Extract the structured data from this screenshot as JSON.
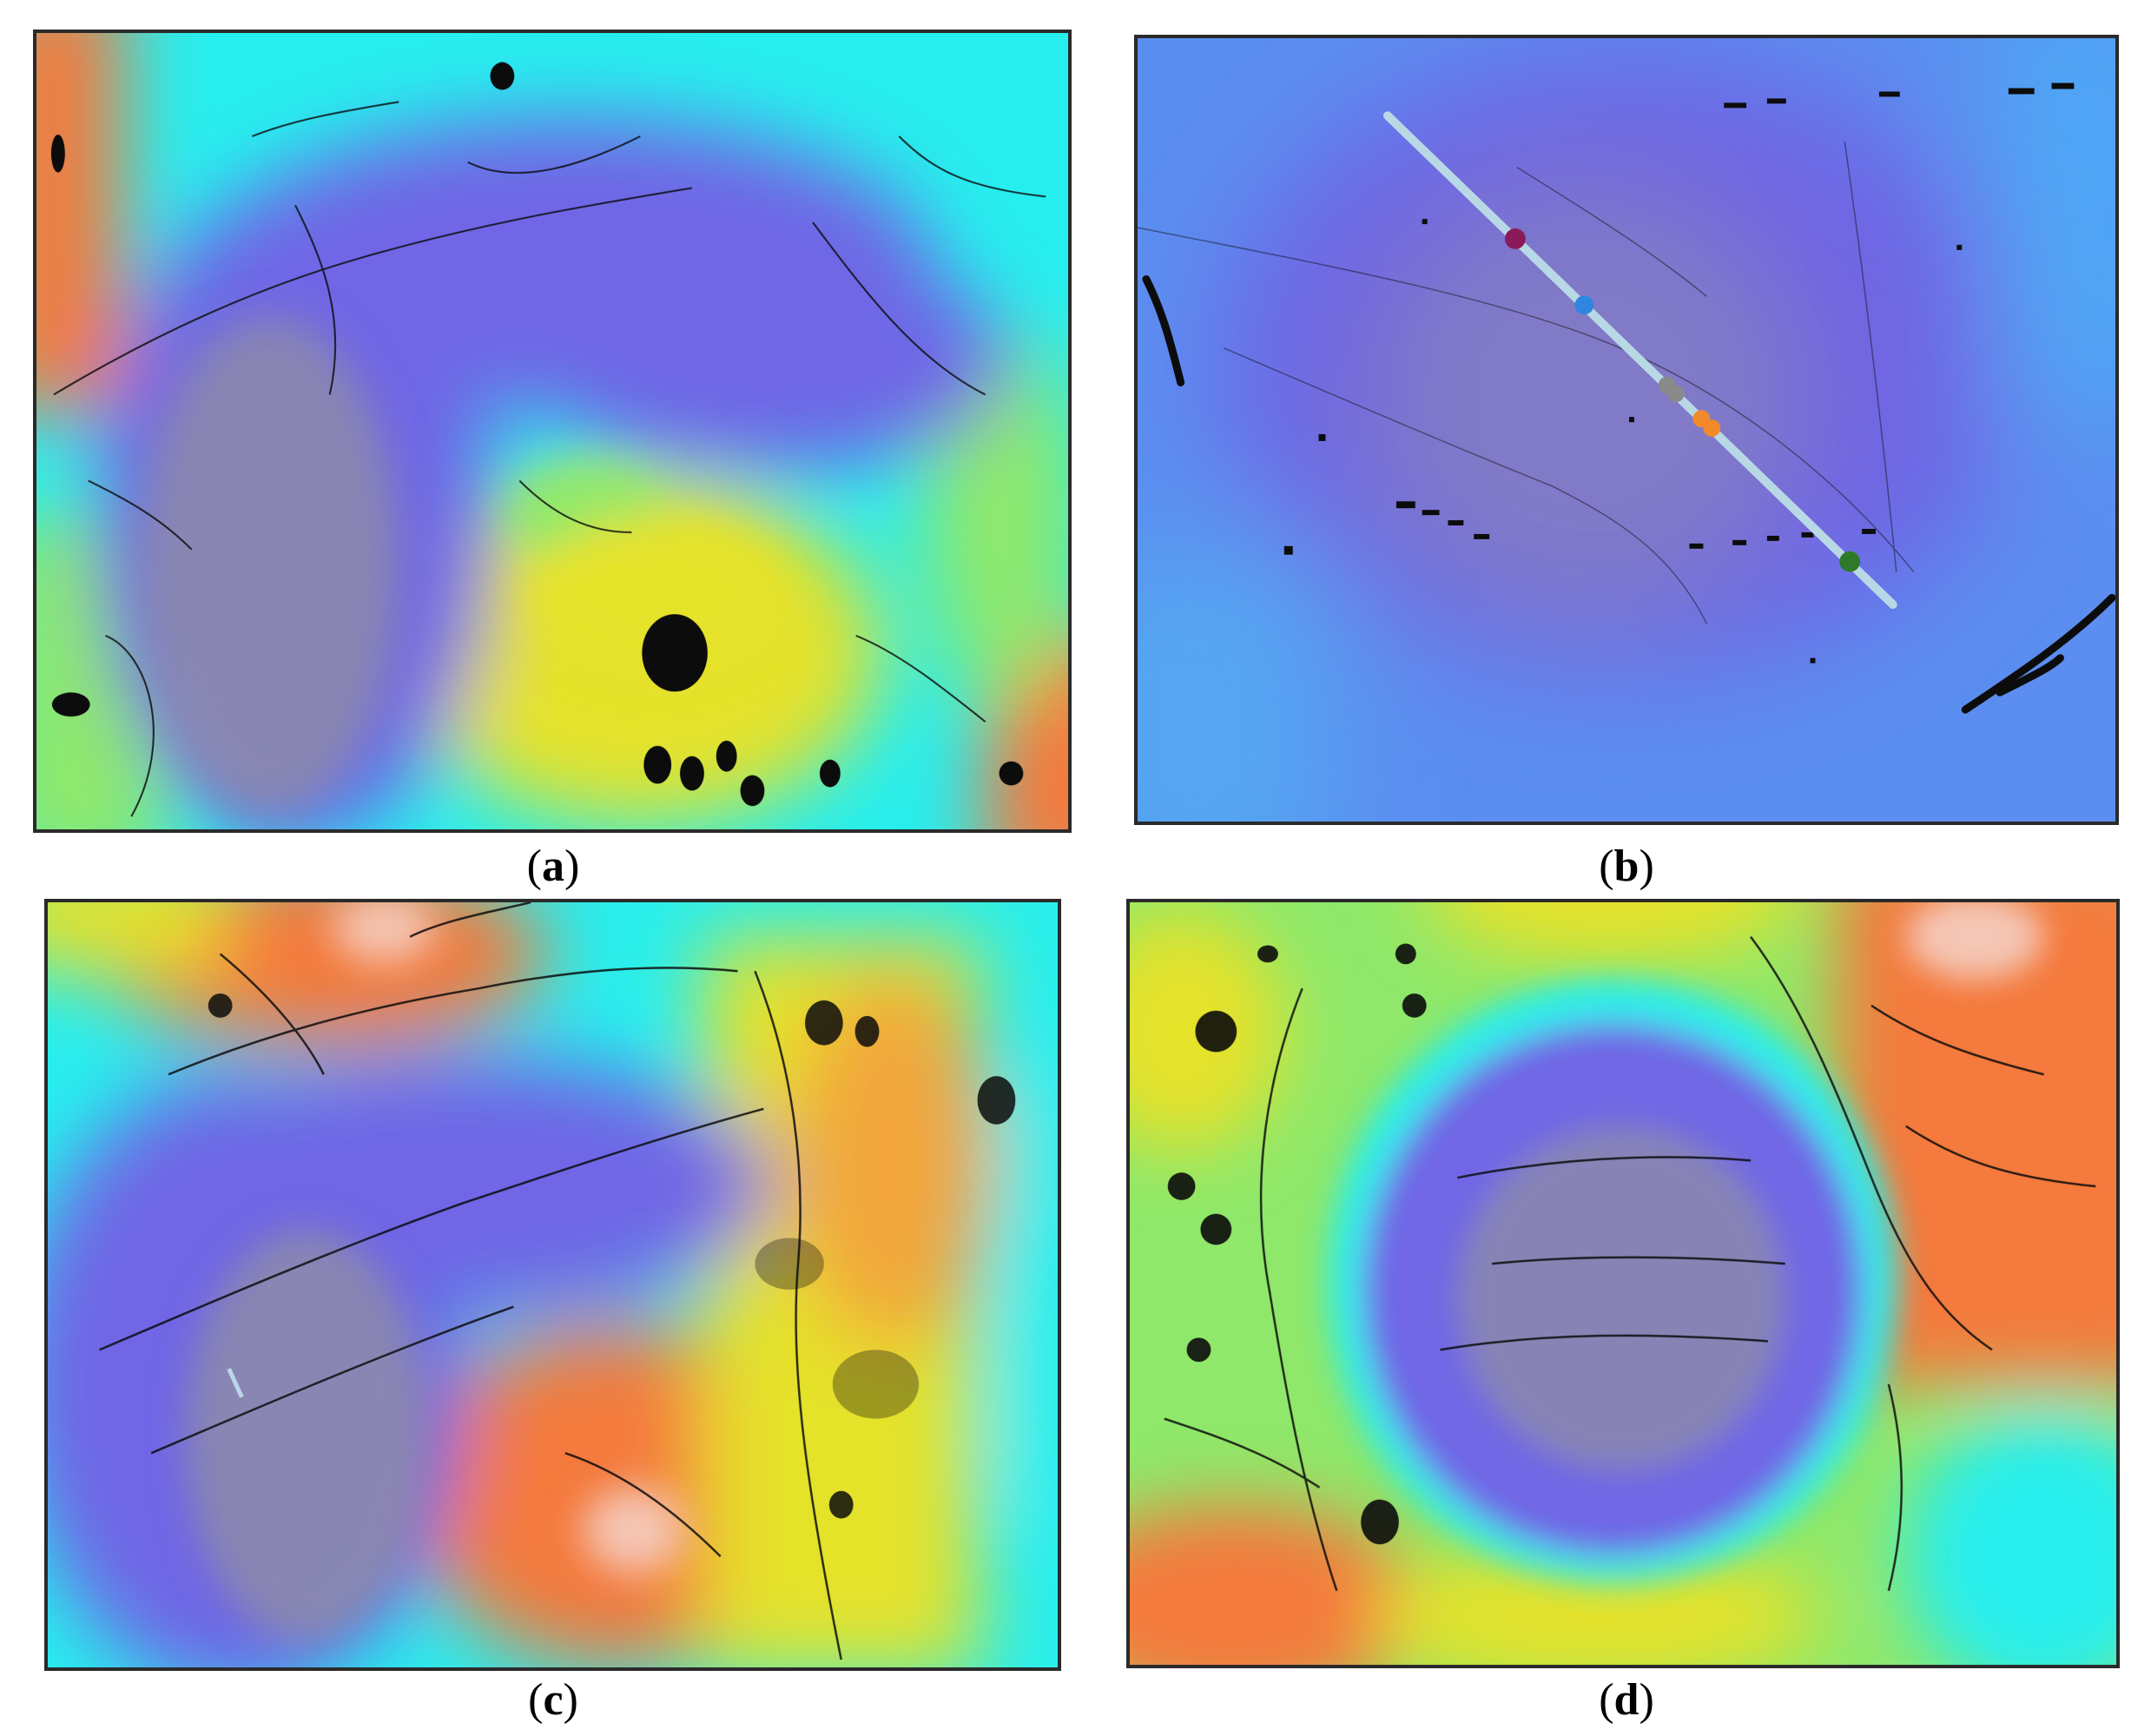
{
  "captions": [
    {
      "open": "(",
      "letter": "a",
      "close": ")"
    },
    {
      "open": "(",
      "letter": "b",
      "close": ")"
    },
    {
      "open": "(",
      "letter": "c",
      "close": ")"
    },
    {
      "open": "(",
      "letter": "d",
      "close": ")"
    }
  ],
  "colors": {
    "low": "#6f66e6",
    "grey": "#8d8ca9",
    "cyan": "#27eeee",
    "green": "#8fe86a",
    "yellow": "#e5e22c",
    "orange": "#f47a3e",
    "pale": "#f4c6b5",
    "crack": "#0c0c0c",
    "profile_line": "#b9d8e6"
  },
  "profile_markers": [
    {
      "color": "#8b1a5a"
    },
    {
      "color": "#2f86e0"
    },
    {
      "color": "#8a8a8a"
    },
    {
      "color": "#f28a2a"
    },
    {
      "color": "#2f7a2a"
    }
  ]
}
